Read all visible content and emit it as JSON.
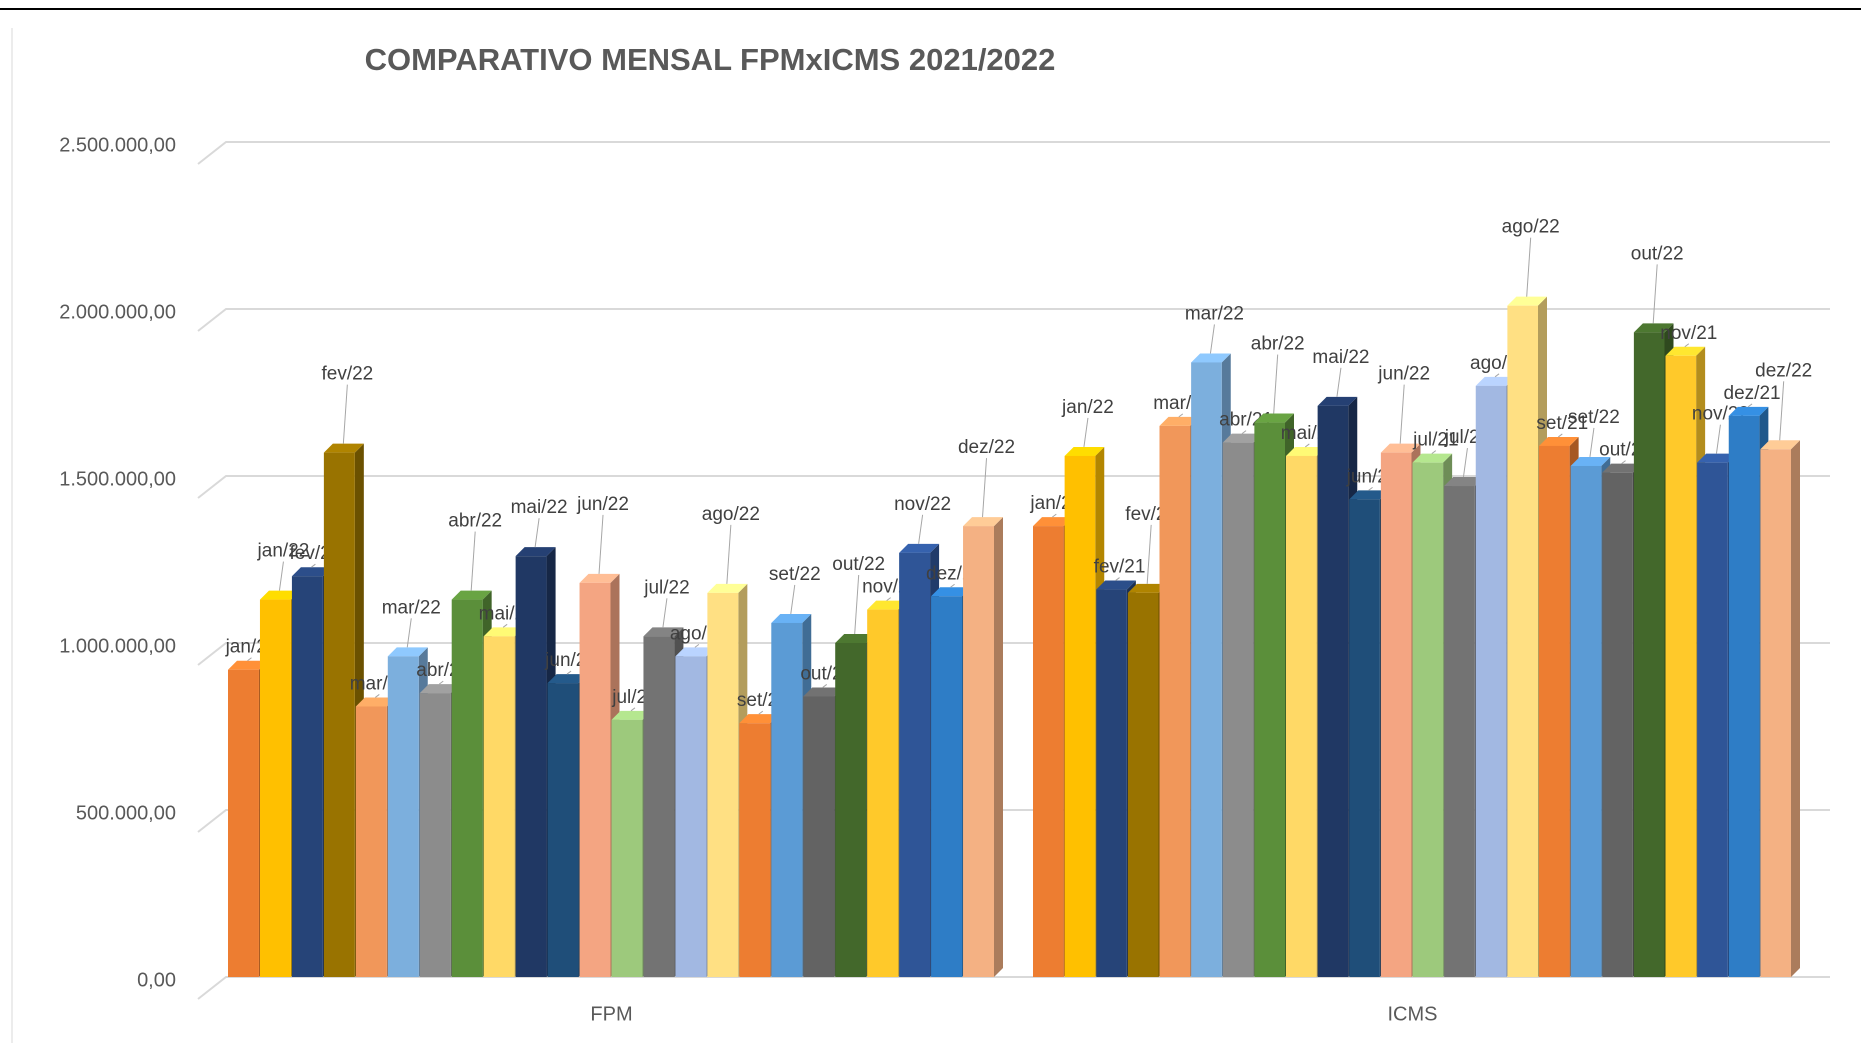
{
  "chart_data": {
    "type": "bar3d",
    "title": "COMPARATIVO MENSAL FPMxICMS 2021/2022",
    "categories": [
      "FPM",
      "ICMS"
    ],
    "ylim": [
      0,
      2500000
    ],
    "yticks": [
      {
        "value": 0,
        "label": "0,00"
      },
      {
        "value": 500000,
        "label": "500.000,00"
      },
      {
        "value": 1000000,
        "label": "1.000.000,00"
      },
      {
        "value": 1500000,
        "label": "1.500.000,00"
      },
      {
        "value": 2000000,
        "label": "2.000.000,00"
      },
      {
        "value": 2500000,
        "label": "2.500.000,00"
      }
    ],
    "grid": true,
    "series": [
      {
        "name": "jan/21",
        "color": "#ed7d31",
        "values": [
          920000,
          1350000
        ]
      },
      {
        "name": "jan/22",
        "color": "#ffc000",
        "values": [
          1130000,
          1560000
        ]
      },
      {
        "name": "fev/21",
        "color": "#264478",
        "values": [
          1200000,
          1160000
        ]
      },
      {
        "name": "fev/22",
        "color": "#997300",
        "values": [
          1570000,
          1150000
        ]
      },
      {
        "name": "mar/21",
        "color": "#f1975a",
        "values": [
          810000,
          1650000
        ]
      },
      {
        "name": "mar/22",
        "color": "#7cafdd",
        "values": [
          960000,
          1840000
        ]
      },
      {
        "name": "abr/21",
        "color": "#8c8c8c",
        "values": [
          850000,
          1600000
        ]
      },
      {
        "name": "abr/22",
        "color": "#5b8f3a",
        "values": [
          1130000,
          1660000
        ]
      },
      {
        "name": "mai/21",
        "color": "#ffd966",
        "values": [
          1020000,
          1560000
        ]
      },
      {
        "name": "mai/22",
        "color": "#203864",
        "values": [
          1260000,
          1710000
        ]
      },
      {
        "name": "jun/21",
        "color": "#1f4e79",
        "values": [
          880000,
          1430000
        ]
      },
      {
        "name": "jun/22",
        "color": "#f4a582",
        "values": [
          1180000,
          1570000
        ]
      },
      {
        "name": "jul/21",
        "color": "#9dc97c",
        "values": [
          770000,
          1540000
        ]
      },
      {
        "name": "jul/22",
        "color": "#737373",
        "values": [
          1020000,
          1470000
        ]
      },
      {
        "name": "ago/21",
        "color": "#a2b8e2",
        "values": [
          960000,
          1770000
        ]
      },
      {
        "name": "ago/22",
        "color": "#ffe083",
        "values": [
          1150000,
          2010000
        ]
      },
      {
        "name": "set/21",
        "color": "#ed7d31",
        "values": [
          760000,
          1590000
        ]
      },
      {
        "name": "set/22",
        "color": "#5b9bd5",
        "values": [
          1060000,
          1530000
        ]
      },
      {
        "name": "out/21",
        "color": "#636363",
        "values": [
          840000,
          1510000
        ]
      },
      {
        "name": "out/22",
        "color": "#43682b",
        "values": [
          1000000,
          1930000
        ]
      },
      {
        "name": "nov/21",
        "color": "#ffc92a",
        "values": [
          1100000,
          1860000
        ]
      },
      {
        "name": "nov/22",
        "color": "#2f5597",
        "values": [
          1270000,
          1540000
        ]
      },
      {
        "name": "dez/21",
        "color": "#2e7dc6",
        "values": [
          1140000,
          1680000
        ]
      },
      {
        "name": "dez/22",
        "color": "#f4b183",
        "values": [
          1350000,
          1580000
        ]
      }
    ]
  }
}
